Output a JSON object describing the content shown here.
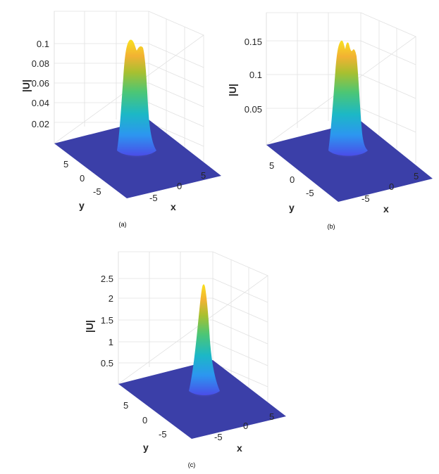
{
  "chart_data": [
    {
      "type": "surface",
      "panel_label": "(a)",
      "zlabel": "|U|",
      "xlabel": "x",
      "ylabel": "y",
      "z_ticks": [
        "0.02",
        "0.04",
        "0.06",
        "0.08",
        "0.1"
      ],
      "x_ticks": [
        "-5",
        "0",
        "5"
      ],
      "y_ticks": [
        "5",
        "0",
        "-5"
      ],
      "peak": 0.103,
      "shape": "double-peak"
    },
    {
      "type": "surface",
      "panel_label": "(b)",
      "zlabel": "|U|",
      "xlabel": "x",
      "ylabel": "y",
      "z_ticks": [
        "0.05",
        "0.1",
        "0.15"
      ],
      "x_ticks": [
        "-5",
        "0",
        "5"
      ],
      "y_ticks": [
        "5",
        "0",
        "-5"
      ],
      "peak": 0.152,
      "shape": "triple-peak"
    },
    {
      "type": "surface",
      "panel_label": "(c)",
      "zlabel": "|U|",
      "xlabel": "x",
      "ylabel": "y",
      "z_ticks": [
        "0.5",
        "1",
        "1.5",
        "2",
        "2.5"
      ],
      "x_ticks": [
        "-5",
        "0",
        "5"
      ],
      "y_ticks": [
        "5",
        "0",
        "-5"
      ],
      "peak": 2.35,
      "shape": "single-peak"
    }
  ],
  "colors": {
    "floor": "#3b3fa8",
    "colormap": [
      "#3e26a8",
      "#4a4de8",
      "#2c96f0",
      "#1cb8c6",
      "#4cc675",
      "#a8c030",
      "#f2b233",
      "#f9e01e"
    ]
  }
}
